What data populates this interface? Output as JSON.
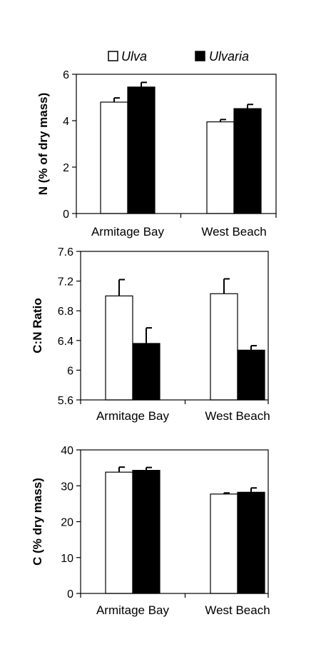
{
  "legend": [
    {
      "name": "Ulva",
      "color": "#ffffff"
    },
    {
      "name": "Ulvaria",
      "color": "#000000"
    }
  ],
  "chart_data": [
    {
      "type": "bar",
      "categories": [
        "Armitage Bay",
        "West Beach"
      ],
      "series": [
        {
          "name": "Ulva",
          "values": [
            4.8,
            3.95
          ],
          "errors": [
            0.18,
            0.1
          ]
        },
        {
          "name": "Ulvaria",
          "values": [
            5.45,
            4.52
          ],
          "errors": [
            0.2,
            0.18
          ]
        }
      ],
      "ylabel": "N (% of dry mass)",
      "xlabel": "",
      "ylim": [
        0,
        6
      ],
      "yticks": [
        "0",
        "2",
        "4",
        "6"
      ],
      "ytick_values": [
        0,
        2,
        4,
        6
      ],
      "grid": false,
      "legend_position": "top"
    },
    {
      "type": "bar",
      "categories": [
        "Armitage Bay",
        "West Beach"
      ],
      "series": [
        {
          "name": "Ulva",
          "values": [
            7.0,
            7.03
          ],
          "errors": [
            0.22,
            0.2
          ]
        },
        {
          "name": "Ulvaria",
          "values": [
            6.36,
            6.27
          ],
          "errors": [
            0.21,
            0.06
          ]
        }
      ],
      "ylabel": "C:N Ratio",
      "xlabel": "",
      "ylim": [
        5.6,
        7.6
      ],
      "yticks": [
        "5.6",
        "6",
        "6.4",
        "6.8",
        "7.2",
        "7.6"
      ],
      "ytick_values": [
        5.6,
        6.0,
        6.4,
        6.8,
        7.2,
        7.6
      ],
      "grid": false
    },
    {
      "type": "bar",
      "categories": [
        "Armitage Bay",
        "West Beach"
      ],
      "series": [
        {
          "name": "Ulva",
          "values": [
            33.8,
            27.7
          ],
          "errors": [
            1.4,
            0.3
          ]
        },
        {
          "name": "Ulvaria",
          "values": [
            34.3,
            28.2
          ],
          "errors": [
            0.8,
            1.2
          ]
        }
      ],
      "ylabel": "C (% dry mass)",
      "xlabel": "",
      "ylim": [
        0,
        40
      ],
      "yticks": [
        "0",
        "10",
        "20",
        "30",
        "40"
      ],
      "ytick_values": [
        0,
        10,
        20,
        30,
        40
      ],
      "grid": false
    }
  ]
}
